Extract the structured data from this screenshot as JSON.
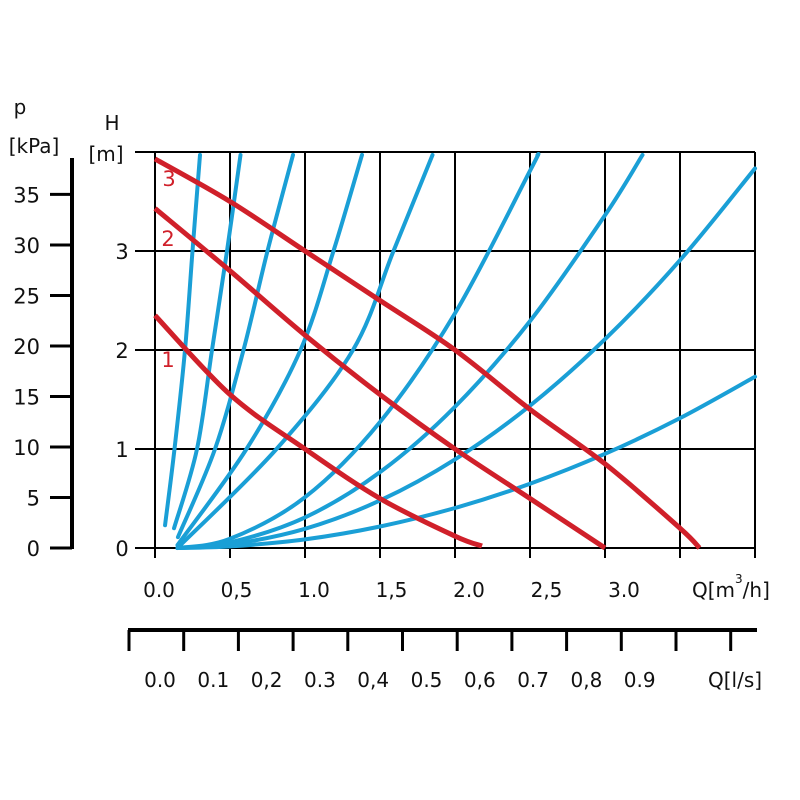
{
  "chart_data": {
    "type": "line",
    "x_axis": {
      "label": "Q[m³/h]",
      "label_main": "Q[m",
      "label_sup": "3",
      "label_tail": "/h]",
      "range": [
        0,
        4.0
      ],
      "ticks": [
        0,
        0.5,
        1.0,
        1.5,
        2.0,
        2.5,
        3.0
      ],
      "tick_labels": [
        "0.0",
        "0,5",
        "1.0",
        "1,5",
        "2.0",
        "2,5",
        "3.0"
      ],
      "grid_step": 0.5
    },
    "x_axis_secondary": {
      "label": "Q[l/s]",
      "tick_labels": [
        "0.0",
        "0.1",
        "0,2",
        "0.3",
        "0,4",
        "0.5",
        "0,6",
        "0.7",
        "0,8",
        "0.9"
      ],
      "tick_count": 12
    },
    "y_axis": {
      "label_symbol": "H",
      "label_unit": "[m]",
      "range": [
        0,
        4
      ],
      "ticks": [
        0,
        1,
        2,
        3
      ],
      "tick_labels": [
        "0",
        "1",
        "2",
        "3"
      ]
    },
    "y_axis_secondary": {
      "label_symbol": "p",
      "label_unit": "[kPa]",
      "range": [
        0,
        39.2
      ],
      "ticks": [
        0,
        5,
        10,
        15,
        20,
        25,
        30,
        35
      ],
      "tick_labels": [
        "0",
        "5",
        "10",
        "15",
        "20",
        "25",
        "30",
        "35"
      ]
    },
    "grid": true,
    "colors": {
      "pump_curve": "#d0202a",
      "system_curve": "#1a9fd6",
      "grid": "#000000"
    },
    "pump_curves": [
      {
        "name": "1",
        "points": [
          [
            0,
            2.35
          ],
          [
            0.5,
            1.55
          ],
          [
            1.0,
            1.0
          ],
          [
            1.5,
            0.5
          ],
          [
            2.0,
            0.12
          ],
          [
            2.18,
            0.02
          ]
        ]
      },
      {
        "name": "2",
        "points": [
          [
            0,
            3.43
          ],
          [
            0.5,
            2.8
          ],
          [
            1.0,
            2.15
          ],
          [
            1.5,
            1.55
          ],
          [
            2.0,
            1.0
          ],
          [
            2.5,
            0.5
          ],
          [
            3.0,
            0.0
          ]
        ]
      },
      {
        "name": "3",
        "points": [
          [
            0,
            3.93
          ],
          [
            0.5,
            3.5
          ],
          [
            1.0,
            3.0
          ],
          [
            1.5,
            2.5
          ],
          [
            2.0,
            2.0
          ],
          [
            2.5,
            1.4
          ],
          [
            3.0,
            0.85
          ],
          [
            3.5,
            0.2
          ],
          [
            3.63,
            0.0
          ]
        ]
      }
    ],
    "system_curves": [
      {
        "points": [
          [
            0.067,
            0.23
          ],
          [
            0.13,
            1.0
          ],
          [
            0.2,
            2.0
          ],
          [
            0.25,
            3.0
          ],
          [
            0.3,
            3.97
          ]
        ]
      },
      {
        "points": [
          [
            0.127,
            0.2
          ],
          [
            0.28,
            1.0
          ],
          [
            0.38,
            2.0
          ],
          [
            0.48,
            3.0
          ],
          [
            0.57,
            3.97
          ]
        ]
      },
      {
        "points": [
          [
            0.153,
            0.11
          ],
          [
            0.4,
            1.0
          ],
          [
            0.59,
            2.0
          ],
          [
            0.75,
            3.0
          ],
          [
            0.92,
            3.97
          ]
        ]
      },
      {
        "points": [
          [
            0.15,
            0.03
          ],
          [
            0.61,
            1.0
          ],
          [
            0.97,
            2.0
          ],
          [
            1.19,
            3.0
          ],
          [
            1.38,
            3.97
          ]
        ]
      },
      {
        "points": [
          [
            0.15,
            0.0
          ],
          [
            0.81,
            1.0
          ],
          [
            1.32,
            2.0
          ],
          [
            1.59,
            3.0
          ],
          [
            1.85,
            3.97
          ]
        ]
      },
      {
        "points": [
          [
            0.15,
            0.0
          ],
          [
            0.5,
            0.093
          ],
          [
            1.0,
            0.513
          ],
          [
            1.5,
            1.273
          ],
          [
            2.0,
            2.371
          ],
          [
            2.5,
            3.81
          ],
          [
            2.55,
            3.97
          ]
        ]
      },
      {
        "points": [
          [
            0.15,
            0.0
          ],
          [
            0.5,
            0.056
          ],
          [
            1.0,
            0.309
          ],
          [
            1.5,
            0.766
          ],
          [
            2.0,
            1.427
          ],
          [
            2.5,
            2.292
          ],
          [
            3.0,
            3.361
          ],
          [
            3.25,
            3.97
          ]
        ]
      },
      {
        "points": [
          [
            0.15,
            0.0
          ],
          [
            0.5,
            0.035
          ],
          [
            1.0,
            0.194
          ],
          [
            1.5,
            0.48
          ],
          [
            2.0,
            0.895
          ],
          [
            2.5,
            1.438
          ],
          [
            3.0,
            2.109
          ],
          [
            3.5,
            2.907
          ],
          [
            4.0,
            3.834
          ]
        ]
      },
      {
        "points": [
          [
            0.15,
            0.0
          ],
          [
            0.5,
            0.016
          ],
          [
            1.0,
            0.087
          ],
          [
            1.5,
            0.217
          ],
          [
            2.0,
            0.404
          ],
          [
            2.5,
            0.649
          ],
          [
            3.0,
            0.951
          ],
          [
            3.5,
            1.312
          ],
          [
            4.0,
            1.73
          ]
        ]
      }
    ]
  }
}
